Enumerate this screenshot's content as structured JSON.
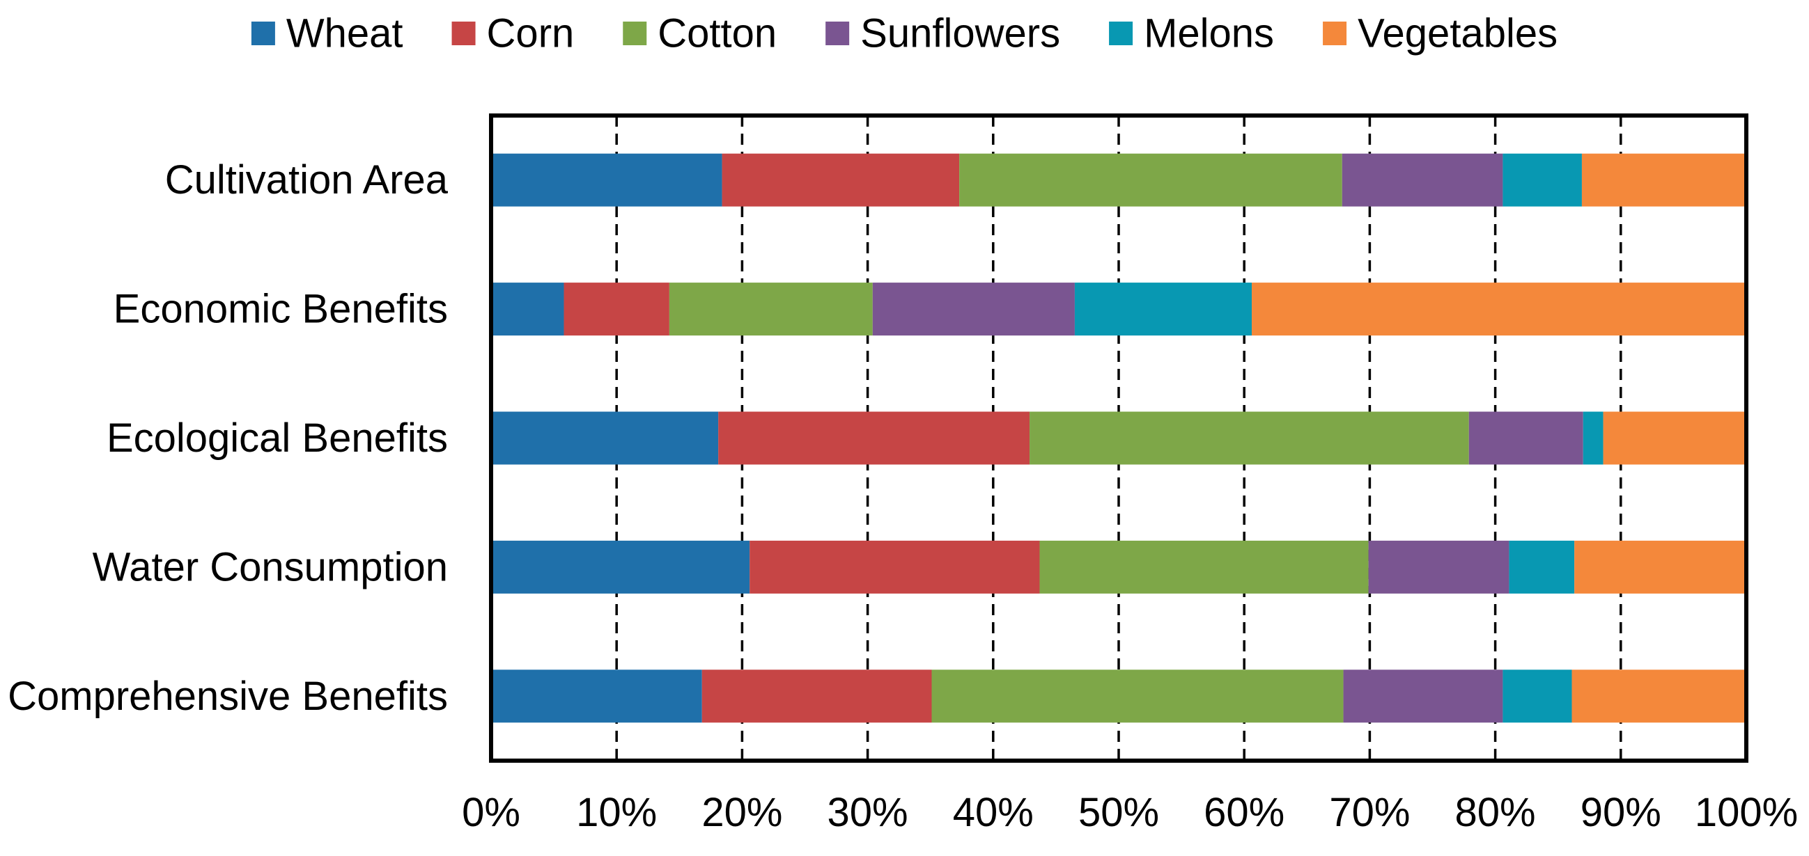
{
  "chart_data": {
    "type": "bar",
    "orientation": "horizontal",
    "stacked": "percent",
    "title": "",
    "xlabel": "",
    "ylabel": "",
    "xlim": [
      0,
      100
    ],
    "xticks": [
      "0%",
      "10%",
      "20%",
      "30%",
      "40%",
      "50%",
      "60%",
      "70%",
      "80%",
      "90%",
      "100%"
    ],
    "grid": "vertical dashed",
    "legend_position": "top",
    "categories": [
      "Cultivation Area",
      "Economic Benefits",
      "Ecological Benefits",
      "Water Consumption",
      "Comprehensive Benefits"
    ],
    "series": [
      {
        "name": "Wheat",
        "color": "#1f70aa",
        "values": [
          18.4,
          5.8,
          18.1,
          20.6,
          16.8
        ]
      },
      {
        "name": "Corn",
        "color": "#c64545",
        "values": [
          18.9,
          8.4,
          24.8,
          23.1,
          18.3
        ]
      },
      {
        "name": "Cotton",
        "color": "#7ea748",
        "values": [
          30.5,
          16.2,
          35.0,
          26.2,
          32.8
        ]
      },
      {
        "name": "Sunflowers",
        "color": "#7a5591",
        "values": [
          12.8,
          16.1,
          9.1,
          11.2,
          12.7
        ]
      },
      {
        "name": "Melons",
        "color": "#0898b2",
        "values": [
          6.3,
          14.1,
          1.6,
          5.2,
          5.5
        ]
      },
      {
        "name": "Vegetables",
        "color": "#f4883b",
        "values": [
          13.1,
          39.4,
          11.4,
          13.7,
          13.9
        ]
      }
    ]
  }
}
